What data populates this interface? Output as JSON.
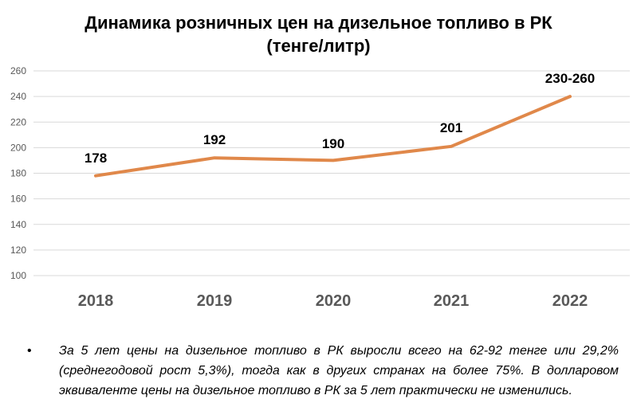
{
  "title_line1": "Динамика розничных цен на дизельное топливо в РК",
  "title_line2": "(тенге/литр)",
  "note_bullet": "•",
  "note_text": "За 5 лет цены на дизельное топливо в РК выросли всего на 62-92 тенге или 29,2% (среднегодовой рост 5,3%), тогда как в других странах на более 75%. В долларовом эквиваленте цены на дизельное топливо в РК за 5 лет практически не изменились.",
  "colors": {
    "line": "#E0884A",
    "grid": "#D9D9D9",
    "tick": "#595959",
    "category": "#595959"
  },
  "chart_data": {
    "type": "line",
    "title": "Динамика розничных цен на дизельное топливо в РК (тенге/литр)",
    "categories": [
      "2018",
      "2019",
      "2020",
      "2021",
      "2022"
    ],
    "series": [
      {
        "values": [
          178,
          192,
          190,
          201,
          240
        ]
      }
    ],
    "data_labels": [
      "178",
      "192",
      "190",
      "201",
      "230-260"
    ],
    "y_ticks": [
      100,
      120,
      140,
      160,
      180,
      200,
      220,
      240,
      260
    ],
    "ylim": [
      100,
      260
    ],
    "grid": true,
    "legend": "none"
  }
}
